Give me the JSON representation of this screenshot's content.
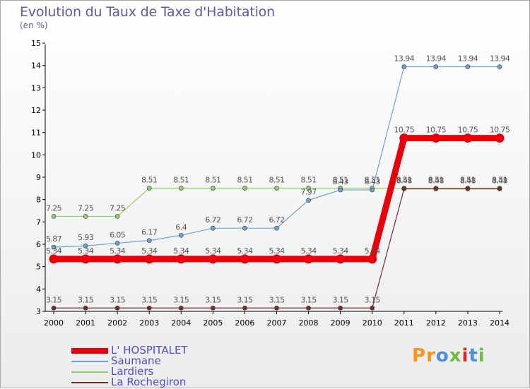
{
  "title": "Evolution du Taux de Taxe d'Habitation",
  "subtitle": "(en %)",
  "logo": {
    "text": "Proxiti",
    "colors": [
      "#f7941d",
      "#f7941d",
      "#4a90d9",
      "#6fbe44",
      "#d62b2b",
      "#4a90d9",
      "#6fbe44"
    ]
  },
  "chart_data": {
    "type": "line",
    "x": [
      "2000",
      "2001",
      "2002",
      "2003",
      "2004",
      "2005",
      "2006",
      "2007",
      "2008",
      "2009",
      "2010",
      "2011",
      "2012",
      "2013",
      "2014"
    ],
    "yticks": [
      "3",
      "4",
      "5",
      "6",
      "7",
      "8",
      "9",
      "10",
      "11",
      "12",
      "13",
      "14",
      "15"
    ],
    "ylim": [
      3,
      15
    ],
    "grid": false,
    "legend_position": "bottom-left",
    "series": [
      {
        "name": "Lardiers",
        "color": "#8ed16a",
        "values": [
          7.25,
          7.25,
          7.25,
          8.51,
          8.51,
          8.51,
          8.51,
          8.51,
          8.51,
          8.51,
          8.51,
          8.51,
          8.51,
          8.51,
          8.51
        ],
        "labels": [
          "7.25",
          "7.25",
          "7.25",
          "8.51",
          "8.51",
          "8.51",
          "8.51",
          "8.51",
          "8.51",
          "8.51",
          "8.51",
          "8.51",
          "8.51",
          "8.51",
          "8.51"
        ]
      },
      {
        "name": "Saumane",
        "color": "#6ca3d4",
        "values": [
          5.87,
          5.93,
          6.05,
          6.17,
          6.4,
          6.72,
          6.72,
          6.72,
          7.97,
          8.43,
          8.43,
          13.94,
          13.94,
          13.94,
          13.94
        ],
        "labels": [
          "5.87",
          "5.93",
          "6.05",
          "6.17",
          "6.4",
          "6.72",
          "6.72",
          "6.72",
          "7.97",
          "8.43",
          "8.43",
          "13.94",
          "13.94",
          "13.94",
          "13.94"
        ]
      },
      {
        "name": "La Rochegiron",
        "color": "#7a2a2a",
        "values": [
          3.15,
          3.15,
          3.15,
          3.15,
          3.15,
          3.15,
          3.15,
          3.15,
          3.15,
          3.15,
          3.15,
          8.48,
          8.48,
          8.48,
          8.48
        ],
        "labels": [
          "3.15",
          "3.15",
          "3.15",
          "3.15",
          "3.15",
          "3.15",
          "3.15",
          "3.15",
          "3.15",
          "3.15",
          "3.15",
          "8.48",
          "8.48",
          "8.48",
          "8.48"
        ]
      },
      {
        "name": "L' HOSPITALET",
        "color": "#e8000b",
        "values": [
          5.34,
          5.34,
          5.34,
          5.34,
          5.34,
          5.34,
          5.34,
          5.34,
          5.34,
          5.34,
          5.34,
          10.75,
          10.75,
          10.75,
          10.75
        ],
        "labels": [
          "5.34",
          "5.34",
          "5.34",
          "5.34",
          "5.34",
          "5.34",
          "5.34",
          "5.34",
          "5.34",
          "5.34",
          "5.34",
          "10.75",
          "10.75",
          "10.75",
          "10.75"
        ]
      }
    ],
    "legend_order": [
      "L' HOSPITALET",
      "Saumane",
      "Lardiers",
      "La Rochegiron"
    ]
  }
}
